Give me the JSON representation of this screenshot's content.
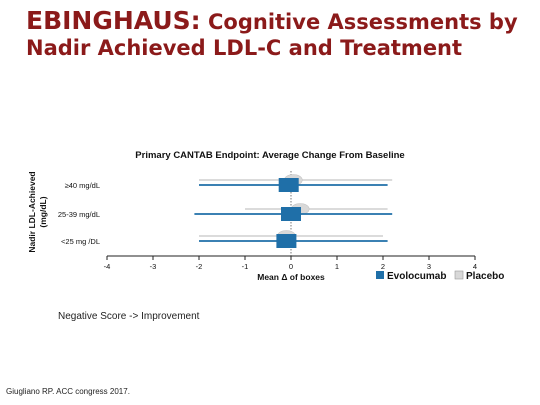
{
  "slide": {
    "title_lead": "EBINGHAUS:",
    "title_rest": " Cognitive Assessments by Nadir Achieved LDL-C and Treatment",
    "note": "Negative Score -> Improvement",
    "citation": "Giugliano RP. ACC congress 2017."
  },
  "chart_data": {
    "type": "forest",
    "title": "Primary CANTAB Endpoint: Average Change From Baseline",
    "xlabel": "Mean Δ of boxes",
    "ylabel": "Nadir LDL-Achieved (mg/dL)",
    "xlim": [
      -4,
      4
    ],
    "xticks": [
      "-4",
      "-3",
      "-2",
      "-1",
      "0",
      "1",
      "2",
      "3",
      "4"
    ],
    "categories": [
      "≥40 mg/dL",
      "25-39 mg/dL",
      "<25 mg /DL"
    ],
    "legend_position": "bottom-right",
    "series": [
      {
        "name": "Evolocumab",
        "color": "#1f6fa8",
        "marker": "square",
        "points": [
          {
            "category": "≥40 mg/dL",
            "estimate": -0.05,
            "lower": -2.0,
            "upper": 2.1
          },
          {
            "category": "25-39 mg/dL",
            "estimate": 0.0,
            "lower": -2.1,
            "upper": 2.2
          },
          {
            "category": "<25 mg /DL",
            "estimate": -0.1,
            "lower": -2.0,
            "upper": 2.1
          }
        ]
      },
      {
        "name": "Placebo",
        "color": "#d8d8d8",
        "marker": "ellipse",
        "points": [
          {
            "category": "≥40 mg/dL",
            "estimate": 0.05,
            "lower": -2.0,
            "upper": 2.2
          },
          {
            "category": "25-39 mg/dL",
            "estimate": 0.2,
            "lower": -1.0,
            "upper": 2.1
          },
          {
            "category": "<25 mg /DL",
            "estimate": -0.1,
            "lower": -2.0,
            "upper": 2.0
          }
        ]
      }
    ]
  }
}
